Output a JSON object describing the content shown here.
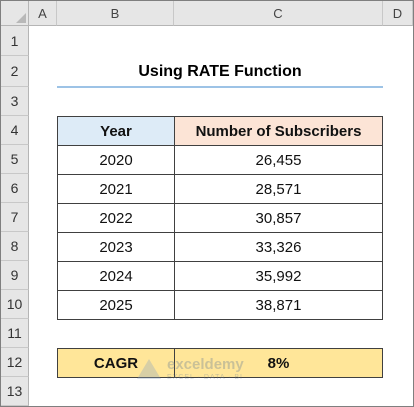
{
  "columns": [
    "A",
    "B",
    "C",
    "D"
  ],
  "rows": [
    "1",
    "2",
    "3",
    "4",
    "5",
    "6",
    "7",
    "8",
    "9",
    "10",
    "11",
    "12",
    "13"
  ],
  "title": "Using RATE Function",
  "table": {
    "headers": {
      "year": "Year",
      "subscribers": "Number of Subscribers"
    },
    "data": [
      {
        "year": "2020",
        "subscribers": "26,455"
      },
      {
        "year": "2021",
        "subscribers": "28,571"
      },
      {
        "year": "2022",
        "subscribers": "30,857"
      },
      {
        "year": "2023",
        "subscribers": "33,326"
      },
      {
        "year": "2024",
        "subscribers": "35,992"
      },
      {
        "year": "2025",
        "subscribers": "38,871"
      }
    ]
  },
  "cagr": {
    "label": "CAGR",
    "value": "8%"
  },
  "watermark": {
    "name": "exceldemy",
    "tagline": "EXCEL · DATA · BI"
  },
  "colors": {
    "year_header_fill": "#ddebf7",
    "subscribers_header_fill": "#fce4d6",
    "cagr_fill": "#ffe699",
    "title_underline": "#9dc3e6",
    "header_bar": "#e6e6e6"
  }
}
